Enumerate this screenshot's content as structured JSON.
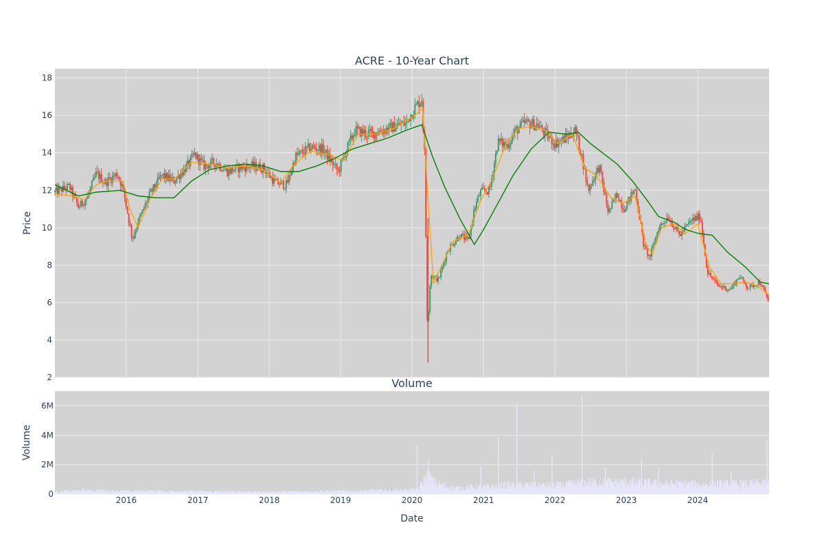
{
  "chart_data": [
    {
      "type": "candlestick",
      "title": "ACRE - 10-Year Chart",
      "xlabel": "",
      "ylabel": "Price",
      "ylim": [
        2,
        18.5
      ],
      "yticks": [
        2,
        4,
        6,
        8,
        10,
        12,
        14,
        16,
        18
      ],
      "xlim": [
        "2015-01-01",
        "2024-12-31"
      ],
      "xticks": [
        "2016",
        "2017",
        "2018",
        "2019",
        "2020",
        "2021",
        "2022",
        "2023",
        "2024"
      ],
      "grid": true,
      "colors": {
        "up": "#3d9970",
        "down": "#ff4136",
        "ma_short": "#ffa500",
        "ma_long": "#008000",
        "plot_bg": "#d3d3d3",
        "grid": "#ececec"
      },
      "price_path": [
        [
          "2015-01-01",
          11.9
        ],
        [
          "2015-03-15",
          12.2
        ],
        [
          "2015-05-01",
          11.1
        ],
        [
          "2015-06-15",
          11.6
        ],
        [
          "2015-08-01",
          12.9
        ],
        [
          "2015-09-15",
          12.4
        ],
        [
          "2015-11-15",
          12.9
        ],
        [
          "2015-12-15",
          12.1
        ],
        [
          "2016-02-01",
          9.4
        ],
        [
          "2016-03-01",
          10.3
        ],
        [
          "2016-05-01",
          11.8
        ],
        [
          "2016-07-01",
          12.8
        ],
        [
          "2016-09-01",
          12.5
        ],
        [
          "2016-11-15",
          13.4
        ],
        [
          "2016-12-15",
          13.9
        ],
        [
          "2017-02-01",
          13.3
        ],
        [
          "2017-04-01",
          13.5
        ],
        [
          "2017-06-01",
          13.0
        ],
        [
          "2017-08-01",
          13.2
        ],
        [
          "2017-10-01",
          13.3
        ],
        [
          "2017-12-01",
          13.2
        ],
        [
          "2018-02-01",
          12.4
        ],
        [
          "2018-04-01",
          12.3
        ],
        [
          "2018-05-15",
          13.8
        ],
        [
          "2018-08-01",
          14.3
        ],
        [
          "2018-10-01",
          14.2
        ],
        [
          "2018-12-20",
          13.0
        ],
        [
          "2019-02-01",
          14.2
        ],
        [
          "2019-03-15",
          15.2
        ],
        [
          "2019-06-01",
          15.0
        ],
        [
          "2019-09-01",
          15.3
        ],
        [
          "2019-12-01",
          15.6
        ],
        [
          "2020-01-15",
          16.4
        ],
        [
          "2020-02-20",
          16.9
        ],
        [
          "2020-03-05",
          14.0
        ],
        [
          "2020-03-20",
          4.5
        ],
        [
          "2020-04-05",
          7.5
        ],
        [
          "2020-05-15",
          7.2
        ],
        [
          "2020-07-01",
          8.8
        ],
        [
          "2020-09-01",
          9.6
        ],
        [
          "2020-10-15",
          9.3
        ],
        [
          "2020-11-15",
          11.0
        ],
        [
          "2020-12-15",
          11.9
        ],
        [
          "2021-02-01",
          12.0
        ],
        [
          "2021-03-15",
          14.6
        ],
        [
          "2021-05-01",
          14.4
        ],
        [
          "2021-06-15",
          15.2
        ],
        [
          "2021-08-01",
          15.6
        ],
        [
          "2021-10-01",
          15.5
        ],
        [
          "2021-11-15",
          15.0
        ],
        [
          "2022-01-01",
          14.5
        ],
        [
          "2022-03-01",
          14.8
        ],
        [
          "2022-04-15",
          15.2
        ],
        [
          "2022-05-15",
          14.0
        ],
        [
          "2022-06-20",
          12.0
        ],
        [
          "2022-08-15",
          13.3
        ],
        [
          "2022-10-01",
          10.8
        ],
        [
          "2022-11-15",
          11.8
        ],
        [
          "2022-12-20",
          11.0
        ],
        [
          "2023-02-15",
          12.1
        ],
        [
          "2023-04-01",
          9.0
        ],
        [
          "2023-05-01",
          8.4
        ],
        [
          "2023-06-15",
          10.0
        ],
        [
          "2023-08-01",
          10.6
        ],
        [
          "2023-10-01",
          9.6
        ],
        [
          "2023-12-01",
          10.4
        ],
        [
          "2024-01-15",
          10.6
        ],
        [
          "2024-02-20",
          7.6
        ],
        [
          "2024-04-15",
          6.9
        ],
        [
          "2024-06-15",
          6.7
        ],
        [
          "2024-08-01",
          7.4
        ],
        [
          "2024-09-15",
          6.8
        ],
        [
          "2024-11-15",
          7.1
        ],
        [
          "2024-12-31",
          6.0
        ]
      ],
      "series": [
        {
          "values": [
            [
              "2015-01-01",
              11.8
            ],
            [
              "2015-04-01",
              11.7
            ],
            [
              "2015-06-01",
              11.5
            ],
            [
              "2015-08-01",
              12.3
            ],
            [
              "2015-10-01",
              12.5
            ],
            [
              "2015-12-15",
              12.5
            ],
            [
              "2016-01-20",
              11.0
            ],
            [
              "2016-03-01",
              10.0
            ],
            [
              "2016-05-01",
              11.5
            ],
            [
              "2016-07-01",
              12.6
            ],
            [
              "2016-09-01",
              12.6
            ],
            [
              "2016-12-01",
              13.5
            ],
            [
              "2017-03-01",
              13.4
            ],
            [
              "2017-06-01",
              13.2
            ],
            [
              "2017-09-01",
              13.3
            ],
            [
              "2017-12-01",
              13.1
            ],
            [
              "2018-03-01",
              12.4
            ],
            [
              "2018-05-01",
              13.3
            ],
            [
              "2018-08-01",
              14.1
            ],
            [
              "2018-11-01",
              13.9
            ],
            [
              "2019-01-15",
              13.6
            ],
            [
              "2019-04-01",
              15.0
            ],
            [
              "2019-07-01",
              15.0
            ],
            [
              "2019-10-01",
              15.3
            ],
            [
              "2020-01-15",
              16.0
            ],
            [
              "2020-02-25",
              16.4
            ],
            [
              "2020-03-20",
              12.0
            ],
            [
              "2020-04-20",
              7.0
            ],
            [
              "2020-06-01",
              8.0
            ],
            [
              "2020-08-01",
              9.3
            ],
            [
              "2020-10-15",
              9.6
            ],
            [
              "2020-12-15",
              11.4
            ],
            [
              "2021-02-15",
              12.6
            ],
            [
              "2021-05-01",
              14.6
            ],
            [
              "2021-07-01",
              15.3
            ],
            [
              "2021-09-01",
              15.4
            ],
            [
              "2021-11-15",
              15.2
            ],
            [
              "2022-01-15",
              14.5
            ],
            [
              "2022-04-01",
              15.0
            ],
            [
              "2022-06-01",
              13.2
            ],
            [
              "2022-08-01",
              12.8
            ],
            [
              "2022-10-15",
              11.6
            ],
            [
              "2022-12-15",
              11.3
            ],
            [
              "2023-02-15",
              11.7
            ],
            [
              "2023-04-15",
              9.0
            ],
            [
              "2023-05-15",
              8.6
            ],
            [
              "2023-07-01",
              10.0
            ],
            [
              "2023-09-01",
              10.2
            ],
            [
              "2023-11-01",
              9.7
            ],
            [
              "2024-01-01",
              10.2
            ],
            [
              "2024-03-01",
              7.9
            ],
            [
              "2024-05-01",
              7.0
            ],
            [
              "2024-07-01",
              7.0
            ],
            [
              "2024-09-01",
              7.1
            ],
            [
              "2024-11-01",
              6.9
            ],
            [
              "2024-12-31",
              6.4
            ]
          ]
        },
        {
          "values": [
            [
              "2015-01-01",
              12.3
            ],
            [
              "2015-05-01",
              11.7
            ],
            [
              "2015-08-01",
              11.9
            ],
            [
              "2015-12-01",
              12.0
            ],
            [
              "2016-03-01",
              11.7
            ],
            [
              "2016-06-01",
              11.6
            ],
            [
              "2016-09-01",
              11.6
            ],
            [
              "2016-12-01",
              12.5
            ],
            [
              "2017-03-01",
              13.1
            ],
            [
              "2017-06-01",
              13.3
            ],
            [
              "2017-09-01",
              13.4
            ],
            [
              "2017-12-01",
              13.3
            ],
            [
              "2018-03-01",
              13.0
            ],
            [
              "2018-06-01",
              13.0
            ],
            [
              "2018-09-01",
              13.3
            ],
            [
              "2018-12-01",
              13.7
            ],
            [
              "2019-03-01",
              14.2
            ],
            [
              "2019-06-01",
              14.5
            ],
            [
              "2019-09-01",
              14.8
            ],
            [
              "2019-12-01",
              15.2
            ],
            [
              "2020-02-20",
              15.5
            ],
            [
              "2020-04-15",
              13.8
            ],
            [
              "2020-06-15",
              12.2
            ],
            [
              "2020-09-01",
              10.5
            ],
            [
              "2020-11-15",
              9.1
            ],
            [
              "2021-01-01",
              9.9
            ],
            [
              "2021-03-15",
              11.3
            ],
            [
              "2021-06-01",
              12.8
            ],
            [
              "2021-09-01",
              14.2
            ],
            [
              "2021-12-01",
              15.1
            ],
            [
              "2022-03-01",
              15.0
            ],
            [
              "2022-05-01",
              15.1
            ],
            [
              "2022-07-01",
              14.5
            ],
            [
              "2022-09-01",
              14.0
            ],
            [
              "2022-11-15",
              13.4
            ],
            [
              "2023-02-01",
              12.5
            ],
            [
              "2023-04-15",
              11.5
            ],
            [
              "2023-06-15",
              10.6
            ],
            [
              "2023-09-01",
              10.3
            ],
            [
              "2023-11-01",
              9.9
            ],
            [
              "2024-01-01",
              9.7
            ],
            [
              "2024-03-15",
              9.6
            ],
            [
              "2024-06-01",
              8.7
            ],
            [
              "2024-09-01",
              7.9
            ],
            [
              "2024-11-15",
              7.1
            ],
            [
              "2024-12-31",
              7.0
            ]
          ]
        }
      ]
    },
    {
      "type": "bar",
      "title": "Volume",
      "xlabel": "Date",
      "ylabel": "Volume",
      "ylim": [
        0,
        7000000
      ],
      "yticks": [
        0,
        2000000,
        4000000,
        6000000
      ],
      "ytick_labels": [
        "0",
        "2M",
        "4M",
        "6M"
      ],
      "xticks": [
        "2016",
        "2017",
        "2018",
        "2019",
        "2020",
        "2021",
        "2022",
        "2023",
        "2024"
      ],
      "grid": true,
      "colors": {
        "bar": "#e6e6fa",
        "plot_bg": "#d3d3d3",
        "grid": "#ececec"
      },
      "volume_level": [
        [
          "2015-01-01",
          150000
        ],
        [
          "2015-06-01",
          250000
        ],
        [
          "2016-01-01",
          200000
        ],
        [
          "2017-01-01",
          180000
        ],
        [
          "2018-01-01",
          150000
        ],
        [
          "2019-01-01",
          200000
        ],
        [
          "2019-10-01",
          250000
        ],
        [
          "2020-02-01",
          300000
        ],
        [
          "2020-03-20",
          1200000
        ],
        [
          "2020-05-01",
          700000
        ],
        [
          "2020-08-01",
          400000
        ],
        [
          "2021-01-01",
          450000
        ],
        [
          "2021-06-01",
          600000
        ],
        [
          "2022-01-01",
          550000
        ],
        [
          "2022-06-01",
          750000
        ],
        [
          "2023-01-01",
          800000
        ],
        [
          "2023-06-01",
          700000
        ],
        [
          "2024-01-01",
          650000
        ],
        [
          "2024-12-31",
          700000
        ]
      ],
      "volume_spikes": [
        [
          "2020-01-27",
          3300000
        ],
        [
          "2020-03-25",
          2300000
        ],
        [
          "2020-12-18",
          1900000
        ],
        [
          "2021-03-19",
          3900000
        ],
        [
          "2021-06-20",
          6200000
        ],
        [
          "2021-09-17",
          1600000
        ],
        [
          "2021-12-17",
          2600000
        ],
        [
          "2022-05-20",
          6700000
        ],
        [
          "2022-09-16",
          1800000
        ],
        [
          "2023-03-20",
          2400000
        ],
        [
          "2023-06-16",
          1800000
        ],
        [
          "2024-03-15",
          2800000
        ],
        [
          "2024-06-20",
          1600000
        ],
        [
          "2024-12-20",
          3700000
        ]
      ]
    }
  ]
}
